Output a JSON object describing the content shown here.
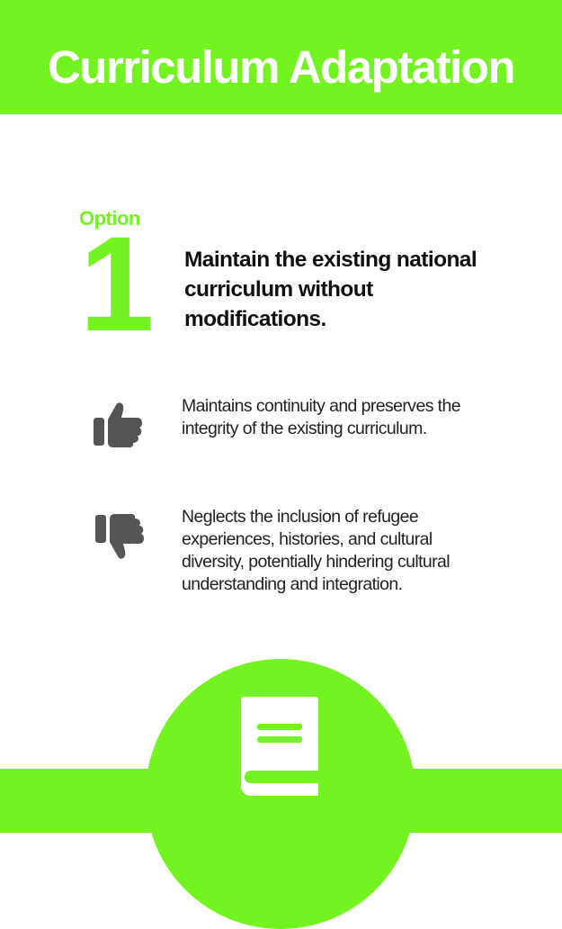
{
  "header": {
    "title": "Curriculum Adaptation",
    "background_color": "#73F31F"
  },
  "option": {
    "label": "Option",
    "number": "1",
    "text": "Maintain the existing national curriculum without modifications."
  },
  "pros": {
    "icon": "thumbs-up-icon",
    "text": "Maintains continuity and preserves the integrity of the existing curriculum."
  },
  "cons": {
    "icon": "thumbs-down-icon",
    "text": "Neglects the inclusion of refugee experiences, histories, and cultural diversity, potentially hindering cultural understanding and integration."
  },
  "footer": {
    "icon": "book-icon",
    "accent_color": "#73F31F"
  },
  "colors": {
    "accent": "#73F31F",
    "icon_gray": "#555555",
    "text": "#111111"
  }
}
